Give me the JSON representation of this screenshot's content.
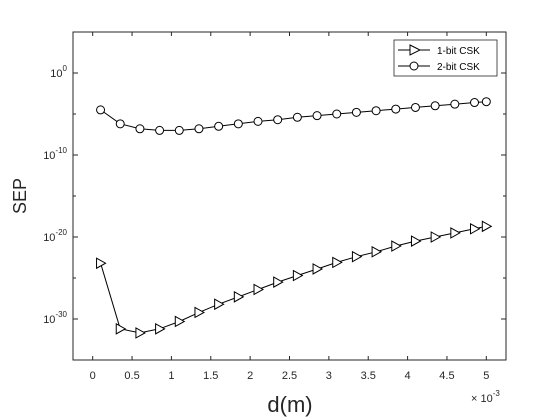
{
  "chart_data": {
    "type": "line",
    "xlabel": "d(m)",
    "ylabel": "SEP",
    "x_multiplier_label": "× 10",
    "x_multiplier_exp": "-3",
    "x_scale": "linear",
    "y_scale": "log",
    "xlim": [
      -0.25,
      5.25
    ],
    "ylim_exp": [
      -35,
      5
    ],
    "x_ticks": [
      0,
      0.5,
      1,
      1.5,
      2,
      2.5,
      3,
      3.5,
      4,
      4.5,
      5
    ],
    "x_tick_labels": [
      "0",
      "0.5",
      "1",
      "1.5",
      "2",
      "2.5",
      "3",
      "3.5",
      "4",
      "4.5",
      "5"
    ],
    "y_ticks_exp": [
      0,
      -10,
      -20,
      -30
    ],
    "y_tick_base": "10",
    "y_tick_exps": [
      "0",
      "-10",
      "-20",
      "-30"
    ],
    "legend_position": "top-right",
    "grid": false,
    "series": [
      {
        "name": "1-bit CSK",
        "marker": "triangle-right",
        "color": "#000000",
        "x": [
          0.1,
          0.35,
          0.6,
          0.85,
          1.1,
          1.35,
          1.6,
          1.85,
          2.1,
          2.35,
          2.6,
          2.85,
          3.1,
          3.35,
          3.6,
          3.85,
          4.1,
          4.35,
          4.6,
          4.85,
          5.0
        ],
        "log10_y": [
          -23.2,
          -31.2,
          -31.7,
          -31.2,
          -30.3,
          -29.2,
          -28.2,
          -27.3,
          -26.4,
          -25.5,
          -24.7,
          -23.9,
          -23.1,
          -22.4,
          -21.8,
          -21.1,
          -20.5,
          -20.0,
          -19.5,
          -19.0,
          -18.7
        ]
      },
      {
        "name": "2-bit CSK",
        "marker": "circle",
        "color": "#000000",
        "x": [
          0.1,
          0.35,
          0.6,
          0.85,
          1.1,
          1.35,
          1.6,
          1.85,
          2.1,
          2.35,
          2.6,
          2.85,
          3.1,
          3.35,
          3.6,
          3.85,
          4.1,
          4.35,
          4.6,
          4.85,
          5.0
        ],
        "log10_y": [
          -4.5,
          -6.2,
          -6.8,
          -7.0,
          -7.0,
          -6.8,
          -6.5,
          -6.2,
          -5.9,
          -5.7,
          -5.4,
          -5.2,
          -5.0,
          -4.8,
          -4.6,
          -4.4,
          -4.2,
          -4.0,
          -3.8,
          -3.6,
          -3.5
        ]
      }
    ]
  }
}
